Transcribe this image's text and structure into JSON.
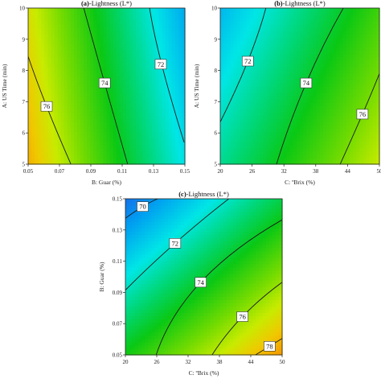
{
  "colors": {
    "contour": "#1a1a1a",
    "label_bg": "#ffffff",
    "axis": "#222222"
  },
  "chart_data": [
    {
      "type": "contour",
      "panel": "a",
      "title_letter": "(a)",
      "title_text": "-Lightness (L*)",
      "xlabel": "B: Guar (%)",
      "ylabel": "A: US Time (min)",
      "xlim": [
        0.05,
        0.15
      ],
      "ylim": [
        5,
        10
      ],
      "xticks": [
        "0.05",
        "0.07",
        "0.09",
        "0.11",
        "0.13",
        "0.15"
      ],
      "yticks": [
        "5",
        "6",
        "7",
        "8",
        "9",
        "10"
      ],
      "grid": false,
      "field": {
        "z_at_xmin_ymin": 78.2,
        "z_at_xmax_ymin": 71.9,
        "z_at_xmin_ymax": 77.3,
        "z_at_xmax_ymax": 70.7
      },
      "contours": [
        {
          "level": 72,
          "label": "72",
          "points": [
            [
              0.1275,
              10
            ],
            [
              0.1352,
              8.2
            ],
            [
              0.1495,
              5.7
            ]
          ],
          "label_at": [
            0.1346,
            8.2
          ]
        },
        {
          "level": 74,
          "label": "74",
          "points": [
            [
              0.0855,
              10
            ],
            [
              0.0988,
              7.6
            ],
            [
              0.1135,
              5
            ]
          ],
          "label_at": [
            0.0988,
            7.6
          ]
        },
        {
          "level": 76,
          "label": "76",
          "points": [
            [
              0.05,
              8.45
            ],
            [
              0.0618,
              6.85
            ],
            [
              0.0773,
              5
            ]
          ],
          "label_at": [
            0.0618,
            6.85
          ]
        }
      ]
    },
    {
      "type": "contour",
      "panel": "b",
      "title_letter": "(b)",
      "title_text": "-Lightness (L*)",
      "xlabel": "C: ºBrix (%)",
      "ylabel": "A: US Time (min)",
      "xlim": [
        20,
        50
      ],
      "ylim": [
        5,
        10
      ],
      "xticks": [
        "20",
        "26",
        "32",
        "38",
        "44",
        "50"
      ],
      "yticks": [
        "5",
        "6",
        "7",
        "8",
        "9",
        "10"
      ],
      "grid": false,
      "field": {
        "z_at_xmin_ymin": 73.0,
        "z_at_xmax_ymin": 77.0,
        "z_at_xmin_ymax": 71.0,
        "z_at_xmax_ymax": 75.2
      },
      "contours": [
        {
          "level": 72,
          "label": "72",
          "points": [
            [
              20,
              6.35
            ],
            [
              25.2,
              8.3
            ],
            [
              28.6,
              10
            ]
          ],
          "label_at": [
            25.2,
            8.3
          ]
        },
        {
          "level": 74,
          "label": "74",
          "points": [
            [
              30.6,
              5
            ],
            [
              36.2,
              7.6
            ],
            [
              43.2,
              10
            ]
          ],
          "label_at": [
            36.2,
            7.6
          ]
        },
        {
          "level": 76,
          "label": "76",
          "points": [
            [
              42.6,
              5
            ],
            [
              46.8,
              6.6
            ],
            [
              50,
              7.9
            ]
          ],
          "label_at": [
            46.8,
            6.6
          ]
        }
      ]
    },
    {
      "type": "contour",
      "panel": "c",
      "title_letter": "(c)",
      "title_text": "-Lightness (L*)",
      "xlabel": "C: ºBrix (%)",
      "ylabel": "B: Guar (%)",
      "xlim": [
        20,
        50
      ],
      "ylim": [
        0.05,
        0.15
      ],
      "xticks": [
        "20",
        "26",
        "32",
        "38",
        "44",
        "50"
      ],
      "yticks": [
        "0.05",
        "0.07",
        "0.09",
        "0.11",
        "0.13",
        "0.15"
      ],
      "grid": false,
      "field": {
        "z_at_xmin_ymin": 74.6,
        "z_at_xmax_ymin": 78.6,
        "z_at_xmin_ymax": 69.5,
        "z_at_xmax_ymax": 73.9
      },
      "contours": [
        {
          "level": 70,
          "label": "70",
          "points": [
            [
              20,
              0.1375
            ],
            [
              23.3,
              0.145
            ],
            [
              26.2,
              0.15
            ]
          ],
          "label_at": [
            23.3,
            0.145
          ]
        },
        {
          "level": 72,
          "label": "72",
          "points": [
            [
              20,
              0.0915
            ],
            [
              29.5,
              0.1215
            ],
            [
              39.8,
              0.15
            ]
          ],
          "label_at": [
            29.5,
            0.1215
          ]
        },
        {
          "level": 74,
          "label": "74",
          "points": [
            [
              25.9,
              0.05
            ],
            [
              34.4,
              0.0965
            ],
            [
              50,
              0.1365
            ]
          ],
          "label_at": [
            34.4,
            0.0965
          ]
        },
        {
          "level": 76,
          "label": "76",
          "points": [
            [
              36.6,
              0.05
            ],
            [
              42.4,
              0.0745
            ],
            [
              50,
              0.0965
            ]
          ],
          "label_at": [
            42.4,
            0.0745
          ]
        },
        {
          "level": 78,
          "label": "78",
          "points": [
            [
              44.9,
              0.05
            ],
            [
              47.6,
              0.0555
            ],
            [
              50,
              0.0605
            ]
          ],
          "label_at": [
            47.6,
            0.0555
          ]
        }
      ]
    }
  ]
}
